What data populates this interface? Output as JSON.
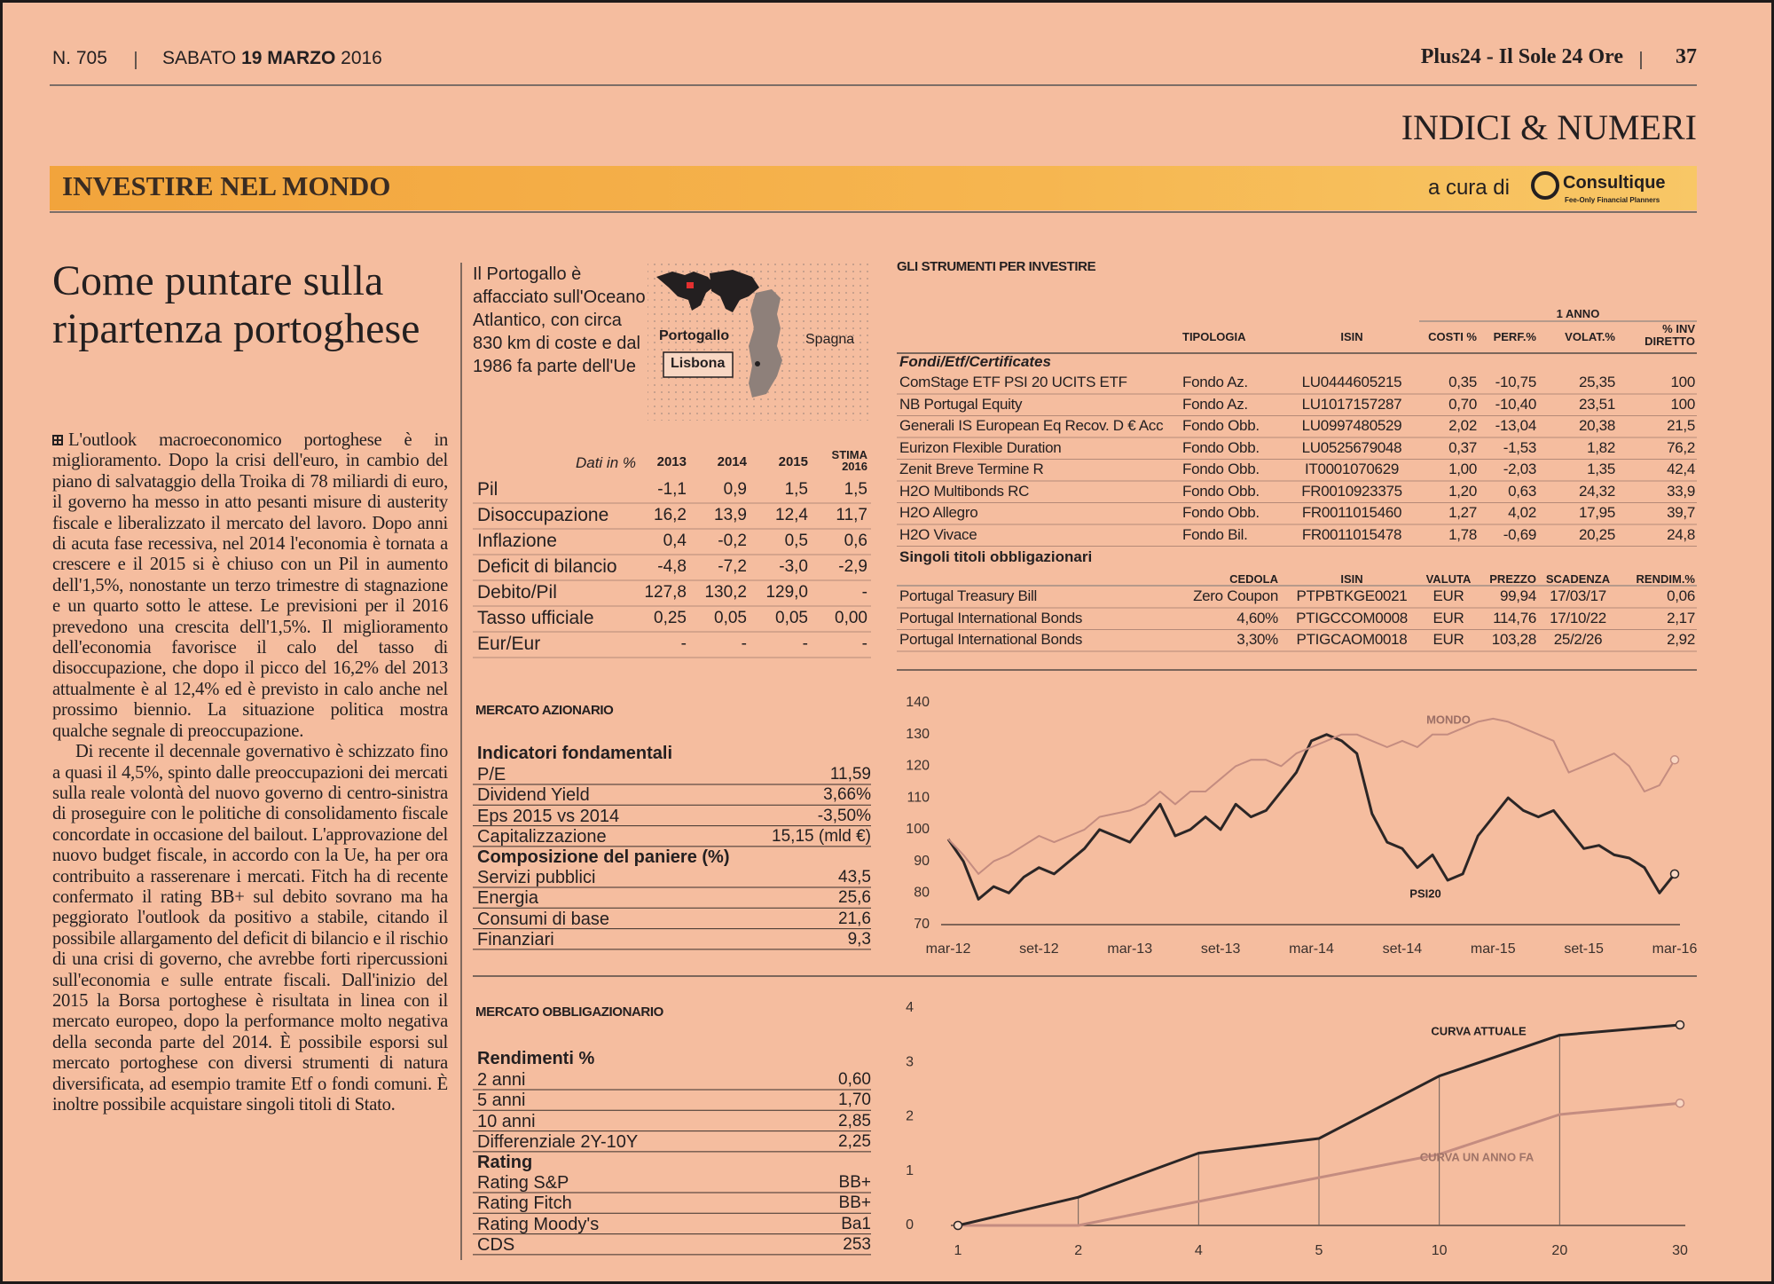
{
  "header": {
    "issue": "N. 705",
    "weekday": "SABATO",
    "date": "19 MARZO",
    "year": "2016",
    "publication": "Plus24 - Il Sole 24 Ore",
    "page": "37"
  },
  "section": "INDICI & NUMERI",
  "band": {
    "title": "INVESTIRE NEL MONDO",
    "curated_by": "a cura di",
    "logo": "Consultique",
    "logo_tagline": "Fee-Only Financial Planners"
  },
  "article": {
    "title": "Come puntare sulla ripartenza portoghese",
    "paragraphs": [
      "L'outlook macroeconomico portoghese è in miglioramento. Dopo la crisi dell'euro, in cambio del piano di salvataggio della Troika di 78 miliardi di euro, il governo ha messo in atto pesanti misure di austerity fiscale e liberalizzato il mercato del lavoro. Dopo anni di acuta fase recessiva, nel 2014 l'economia è tornata a crescere e il 2015 si è chiuso con un Pil in aumento dell'1,5%, nonostante un terzo trimestre di stagnazione e un quarto sotto le attese. Le previsioni per il 2016 prevedono una crescita dell'1,5%. Il miglioramento dell'economia favorisce il calo del tasso di disoccupazione, che dopo il picco del 16,2% del 2013 attualmente è al 12,4% ed è previsto in calo anche nel prossimo biennio. La situazione politica mostra qualche segnale di preoccupazione.",
      "Di recente il decennale governativo è schizzato fino a quasi il 4,5%, spinto dalle preoccupazioni dei mercati sulla reale volontà del nuovo governo di centro-sinistra di proseguire con le politiche di consolidamento fiscale concordate in occasione del bailout. L'approvazione del nuovo budget fiscale, in accordo con la Ue, ha per ora contribuito a rasserenare i mercati. Fitch ha di recente confermato il rating BB+ sul debito sovrano ma ha peggiorato l'outlook da positivo a stabile, citando il possibile allargamento del deficit di bilancio e il rischio di una crisi di governo, che avrebbe forti ripercussioni sull'economia e sulle entrate fiscali. Dall'inizio del 2015 la Borsa portoghese è risultata in linea con il mercato europeo, dopo la performance molto negativa della seconda parte del 2014. È possibile esporsi sul mercato portoghese con diversi strumenti di natura diversificata, ad esempio tramite Etf o fondi comuni. È inoltre possibile acquistare singoli titoli di Stato."
    ]
  },
  "country_box": {
    "text": "Il Portogallo è affacciato sull'Oceano Atlantico, con circa 830 km di coste e dal 1986 fa parte dell'Ue",
    "map_labels": {
      "portugal": "Portogallo",
      "capital": "Lisbona",
      "spain": "Spagna"
    }
  },
  "macro_table": {
    "header": [
      "Dati in %",
      "2013",
      "2014",
      "2015",
      "STIMA 2016"
    ],
    "rows": [
      [
        "Pil",
        "-1,1",
        "0,9",
        "1,5",
        "1,5"
      ],
      [
        "Disoccupazione",
        "16,2",
        "13,9",
        "12,4",
        "11,7"
      ],
      [
        "Inflazione",
        "0,4",
        "-0,2",
        "0,5",
        "0,6"
      ],
      [
        "Deficit di bilancio",
        "-4,8",
        "-7,2",
        "-3,0",
        "-2,9"
      ],
      [
        "Debito/Pil",
        "127,8",
        "130,2",
        "129,0",
        "-"
      ],
      [
        "Tasso ufficiale",
        "0,25",
        "0,05",
        "0,05",
        "0,00"
      ],
      [
        "Eur/Eur",
        "-",
        "-",
        "-",
        "-"
      ]
    ]
  },
  "instruments": {
    "title": "GLI STRUMENTI PER INVESTIRE",
    "period": "1 ANNO",
    "funds_header": [
      "TIPOLOGIA",
      "ISIN",
      "COSTI %",
      "PERF.%",
      "VOLAT.%",
      "% INV DIRETTO"
    ],
    "funds_group": "Fondi/Etf/Certificates",
    "funds": [
      [
        "ComStage ETF PSI 20 UCITS ETF",
        "Fondo Az.",
        "LU0444605215",
        "0,35",
        "-10,75",
        "25,35",
        "100"
      ],
      [
        "NB Portugal Equity",
        "Fondo Az.",
        "LU1017157287",
        "0,70",
        "-10,40",
        "23,51",
        "100"
      ],
      [
        "Generali IS European Eq Recov. D € Acc",
        "Fondo Obb.",
        "LU0997480529",
        "2,02",
        "-13,04",
        "20,38",
        "21,5"
      ],
      [
        "Eurizon Flexible Duration",
        "Fondo Obb.",
        "LU0525679048",
        "0,37",
        "-1,53",
        "1,82",
        "76,2"
      ],
      [
        "Zenit Breve Termine R",
        "Fondo Obb.",
        "IT0001070629",
        "1,00",
        "-2,03",
        "1,35",
        "42,4"
      ],
      [
        "H2O Multibonds RC",
        "Fondo Obb.",
        "FR0010923375",
        "1,20",
        "0,63",
        "24,32",
        "33,9"
      ],
      [
        "H2O Allegro",
        "Fondo Obb.",
        "FR0011015460",
        "1,27",
        "4,02",
        "17,95",
        "39,7"
      ],
      [
        "H2O Vivace",
        "Fondo Bil.",
        "FR0011015478",
        "1,78",
        "-0,69",
        "20,25",
        "24,8"
      ]
    ],
    "bonds_group": "Singoli titoli obbligazionari",
    "bonds_header": [
      "CEDOLA",
      "ISIN",
      "VALUTA",
      "PREZZO",
      "SCADENZA",
      "RENDIM.%"
    ],
    "bonds": [
      [
        "Portugal Treasury Bill",
        "Zero Coupon",
        "PTPBTKGE0021",
        "EUR",
        "99,94",
        "17/03/17",
        "0,06"
      ],
      [
        "Portugal International Bonds",
        "4,60%",
        "PTIGCCOM0008",
        "EUR",
        "114,76",
        "17/10/22",
        "2,17"
      ],
      [
        "Portugal International Bonds",
        "3,30%",
        "PTIGCAOM0018",
        "EUR",
        "103,28",
        "25/2/26",
        "2,92"
      ]
    ]
  },
  "equity_market": {
    "title": "MERCATO AZIONARIO",
    "fundamentals_title": "Indicatori fondamentali",
    "fundamentals": [
      [
        "P/E",
        "11,59"
      ],
      [
        "Dividend Yield",
        "3,66%"
      ],
      [
        "Eps 2015 vs 2014",
        "-3,50%"
      ],
      [
        "Capitalizzazione",
        "15,15 (mld €)"
      ]
    ],
    "basket_title": "Composizione del paniere (%)",
    "basket": [
      [
        "Servizi pubblici",
        "43,5"
      ],
      [
        "Energia",
        "25,6"
      ],
      [
        "Consumi di base",
        "21,6"
      ],
      [
        "Finanziari",
        "9,3"
      ]
    ]
  },
  "bond_market": {
    "title": "MERCATO OBBLIGAZIONARIO",
    "yields_title": "Rendimenti %",
    "yields": [
      [
        "2 anni",
        "0,60"
      ],
      [
        "5 anni",
        "1,70"
      ],
      [
        "10 anni",
        "2,85"
      ],
      [
        "Differenziale 2Y-10Y",
        "2,25"
      ]
    ],
    "rating_title": "Rating",
    "ratings": [
      [
        "Rating S&P",
        "BB+"
      ],
      [
        "Rating Fitch",
        "BB+"
      ],
      [
        "Rating Moody's",
        "Ba1"
      ],
      [
        "CDS",
        "253"
      ]
    ]
  },
  "chart_data": [
    {
      "type": "line",
      "categories": [
        "mar-12",
        null,
        null,
        null,
        null,
        null,
        "set-12",
        null,
        null,
        null,
        null,
        null,
        "mar-13",
        null,
        null,
        null,
        null,
        null,
        "set-13",
        null,
        null,
        null,
        null,
        null,
        "mar-14",
        null,
        null,
        null,
        null,
        null,
        "set-14",
        null,
        null,
        null,
        null,
        null,
        "mar-15",
        null,
        null,
        null,
        null,
        null,
        "set-15",
        null,
        null,
        null,
        null,
        null,
        "mar-16"
      ],
      "series": [
        {
          "name": "MONDO",
          "color": "#c48c80",
          "values": [
            97,
            92,
            86,
            90,
            92,
            95,
            98,
            96,
            98,
            100,
            104,
            105,
            106,
            108,
            112,
            108,
            112,
            112,
            116,
            120,
            122,
            122,
            120,
            124,
            126,
            128,
            130,
            130,
            128,
            126,
            128,
            126,
            130,
            130,
            132,
            134,
            135,
            134,
            132,
            130,
            128,
            118,
            120,
            122,
            124,
            120,
            112,
            114,
            122
          ]
        },
        {
          "name": "PSI20",
          "color": "#2b2626",
          "values": [
            97,
            90,
            78,
            82,
            80,
            85,
            88,
            86,
            90,
            94,
            100,
            98,
            96,
            102,
            108,
            98,
            100,
            104,
            100,
            108,
            104,
            106,
            112,
            118,
            128,
            130,
            128,
            124,
            105,
            96,
            94,
            88,
            92,
            84,
            86,
            98,
            104,
            110,
            106,
            104,
            106,
            100,
            94,
            95,
            92,
            91,
            88,
            80,
            86
          ]
        }
      ],
      "ylim": [
        70,
        140
      ],
      "yticks": [
        70,
        80,
        90,
        100,
        110,
        120,
        130,
        140
      ],
      "grid": false
    },
    {
      "type": "line",
      "categories": [
        "1",
        "2",
        "4",
        "5",
        "10",
        "20",
        "30"
      ],
      "series": [
        {
          "name": "CURVA ATTUALE",
          "color": "#2b2626",
          "values": [
            0,
            0.52,
            1.33,
            1.6,
            2.75,
            3.5,
            3.69
          ]
        },
        {
          "name": "CURVA UN ANNO FA",
          "color": "#c48c80",
          "values": [
            0,
            0,
            0.44,
            0.88,
            1.31,
            2.04,
            2.25
          ]
        }
      ],
      "ylim": [
        0,
        4
      ],
      "yticks": [
        0,
        1,
        2,
        3,
        4
      ],
      "grid": false
    }
  ]
}
